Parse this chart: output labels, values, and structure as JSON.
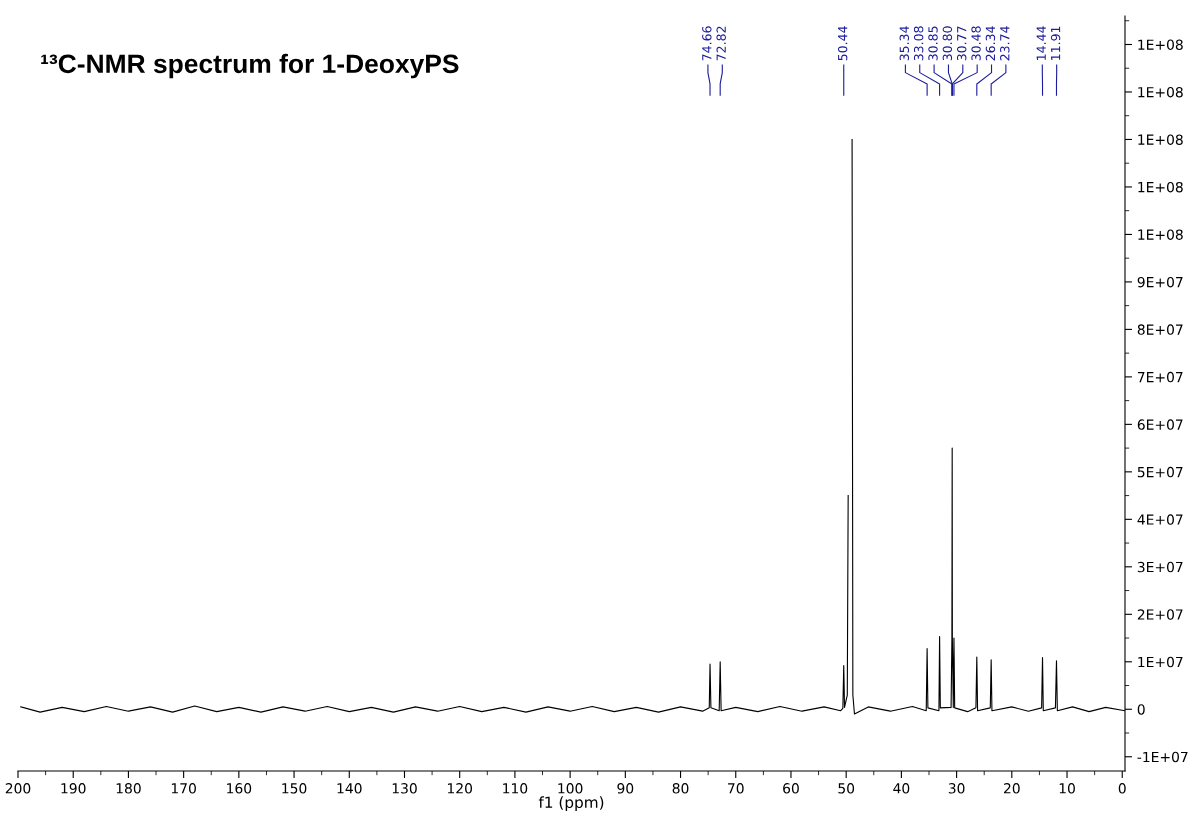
{
  "chart_data": {
    "type": "line",
    "title": "¹³C-NMR spectrum for 1-DeoxyPS",
    "xlabel": "f1 (ppm)",
    "series": [
      {
        "color": "#000000",
        "x": [
          199.5,
          196,
          192,
          188,
          184,
          180,
          176,
          172,
          168,
          164,
          160,
          156,
          152,
          148,
          144,
          140,
          136,
          132,
          128,
          124,
          120,
          116,
          112,
          108,
          104,
          100,
          96,
          92,
          88,
          84,
          80,
          76,
          74.8,
          74.66,
          74.5,
          73,
          72.82,
          72.65,
          70,
          66,
          62,
          58,
          54,
          51,
          50.6,
          50.44,
          50.3,
          49.8,
          49.64,
          49.5,
          49.36,
          49.21,
          49.07,
          48.93,
          48.79,
          48.5,
          46,
          42,
          38,
          35.5,
          35.34,
          35.2,
          33.2,
          33.08,
          32.95,
          31,
          30.85,
          30.8,
          30.77,
          30.6,
          30.48,
          30.35,
          28,
          26.5,
          26.34,
          26.2,
          23.9,
          23.74,
          23.6,
          20,
          17,
          14.6,
          14.44,
          14.3,
          12.1,
          11.91,
          11.75,
          9,
          6,
          3,
          -0.5
        ],
        "values": [
          500000,
          -600000,
          400000,
          -500000,
          600000,
          -400000,
          500000,
          -600000,
          700000,
          -500000,
          400000,
          -600000,
          500000,
          -400000,
          600000,
          -500000,
          400000,
          -600000,
          500000,
          -400000,
          600000,
          -500000,
          400000,
          -600000,
          500000,
          -400000,
          600000,
          -500000,
          400000,
          -600000,
          500000,
          -400000,
          300000,
          9500000,
          300000,
          -300000,
          10000000,
          -300000,
          400000,
          -500000,
          600000,
          -400000,
          500000,
          -300000,
          200000,
          9200000,
          400000,
          3000000,
          45000000,
          null,
          null,
          null,
          null,
          120000000,
          3000000,
          -1000000,
          500000,
          -400000,
          600000,
          -300000,
          12800000,
          300000,
          -300000,
          15300000,
          300000,
          400000,
          15000000,
          55000000,
          15000000,
          400000,
          15000000,
          300000,
          -500000,
          300000,
          11000000,
          -300000,
          300000,
          10400000,
          -300000,
          500000,
          -400000,
          300000,
          10900000,
          -300000,
          300000,
          10200000,
          -300000,
          500000,
          -500000,
          400000,
          -300000
        ]
      }
    ],
    "xlim": [
      200,
      -0.5
    ],
    "xticks": [
      200,
      190,
      180,
      170,
      160,
      150,
      140,
      130,
      120,
      110,
      100,
      90,
      80,
      70,
      60,
      50,
      40,
      30,
      20,
      10,
      0
    ],
    "ylim": [
      -13000000,
      146000000
    ],
    "yticks": [
      {
        "value": -10000000,
        "label": "-1E+07"
      },
      {
        "value": 0,
        "label": "0"
      },
      {
        "value": 10000000,
        "label": "1E+07"
      },
      {
        "value": 20000000,
        "label": "2E+07"
      },
      {
        "value": 30000000,
        "label": "3E+07"
      },
      {
        "value": 40000000,
        "label": "4E+07"
      },
      {
        "value": 50000000,
        "label": "5E+07"
      },
      {
        "value": 60000000,
        "label": "6E+07"
      },
      {
        "value": 70000000,
        "label": "7E+07"
      },
      {
        "value": 80000000,
        "label": "8E+07"
      },
      {
        "value": 90000000,
        "label": "9E+07"
      },
      {
        "value": 100000000,
        "label": "1E+08"
      },
      {
        "value": 110000000,
        "label": "1E+08"
      },
      {
        "value": 120000000,
        "label": "1E+08"
      },
      {
        "value": 130000000,
        "label": "1E+08"
      },
      {
        "value": 140000000,
        "label": "1E+08"
      }
    ],
    "annotations": [
      {
        "text": "74.66",
        "x": 74.66
      },
      {
        "text": "72.82",
        "x": 72.82
      },
      {
        "text": "50.44",
        "x": 50.44
      },
      {
        "text": "35.34",
        "x": 35.34
      },
      {
        "text": "33.08",
        "x": 33.08
      },
      {
        "text": "30.85",
        "x": 30.85
      },
      {
        "text": "30.80",
        "x": 30.8
      },
      {
        "text": "30.77",
        "x": 30.77
      },
      {
        "text": "30.48",
        "x": 30.48
      },
      {
        "text": "26.34",
        "x": 26.34
      },
      {
        "text": "23.74",
        "x": 23.74
      },
      {
        "text": "14.44",
        "x": 14.44
      },
      {
        "text": "11.91",
        "x": 11.91
      }
    ],
    "grid": false
  }
}
